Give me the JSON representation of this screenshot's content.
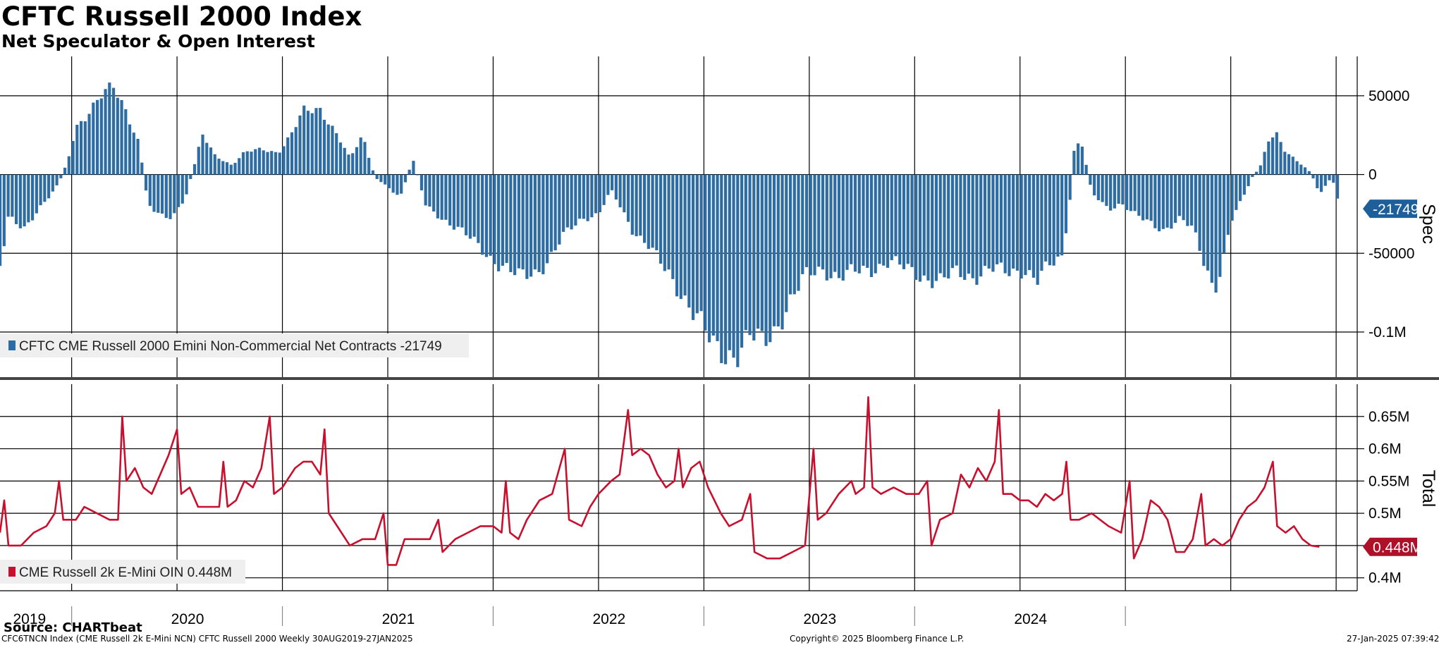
{
  "header": {
    "title": "CFTC Russell 2000 Index",
    "subtitle": "Net Speculator & Open Interest"
  },
  "footer": {
    "source": "Source: CHARTbeat",
    "left": "CFC6TNCN Index (CME Russell 2k E-Mini NCN) CFTC Russell 2000  Weekly 30AUG2019-27JAN2025",
    "center": "Copyright© 2025 Bloomberg Finance L.P.",
    "right": "27-Jan-2025 07:39:42"
  },
  "colors": {
    "spec": "#2e6da4",
    "total": "#c8102e",
    "grid": "#000000"
  },
  "chart_data": [
    {
      "type": "bar",
      "panel": "top",
      "axis_title": "Spec",
      "ylim": [
        -130000,
        75000
      ],
      "yticks": [
        {
          "value": 50000,
          "label": "50000"
        },
        {
          "value": 0,
          "label": "0"
        },
        {
          "value": -50000,
          "label": "-50000"
        },
        {
          "value": -100000,
          "label": "-0.1M"
        }
      ],
      "last_label": "-21749",
      "last_value": -21749,
      "legend": "CFTC CME Russell 2000 Emini Non-Commercial Net Contracts -21749",
      "series_name": "CFTC CME Russell 2000 Emini Non-Commercial Net Contracts",
      "x_start": "2019-08-30",
      "x_end": "2025-01-27",
      "grid": true,
      "anchors": [
        {
          "t": 2019.66,
          "v": -58000
        },
        {
          "t": 2019.7,
          "v": -25000
        },
        {
          "t": 2019.78,
          "v": -35000
        },
        {
          "t": 2019.86,
          "v": -20000
        },
        {
          "t": 2019.94,
          "v": -5000
        },
        {
          "t": 2019.98,
          "v": 8000
        },
        {
          "t": 2020.02,
          "v": 30000
        },
        {
          "t": 2020.08,
          "v": 40000
        },
        {
          "t": 2020.14,
          "v": 50000
        },
        {
          "t": 2020.2,
          "v": 55000
        },
        {
          "t": 2020.26,
          "v": 40000
        },
        {
          "t": 2020.32,
          "v": 20000
        },
        {
          "t": 2020.36,
          "v": -18000
        },
        {
          "t": 2020.42,
          "v": -25000
        },
        {
          "t": 2020.48,
          "v": -28000
        },
        {
          "t": 2020.54,
          "v": -15000
        },
        {
          "t": 2020.58,
          "v": 5000
        },
        {
          "t": 2020.62,
          "v": 25000
        },
        {
          "t": 2020.68,
          "v": 12000
        },
        {
          "t": 2020.76,
          "v": 6000
        },
        {
          "t": 2020.82,
          "v": 14000
        },
        {
          "t": 2020.9,
          "v": 16000
        },
        {
          "t": 2020.98,
          "v": 14000
        },
        {
          "t": 2021.04,
          "v": 25000
        },
        {
          "t": 2021.1,
          "v": 40000
        },
        {
          "t": 2021.18,
          "v": 42000
        },
        {
          "t": 2021.26,
          "v": 25000
        },
        {
          "t": 2021.32,
          "v": 10000
        },
        {
          "t": 2021.38,
          "v": 25000
        },
        {
          "t": 2021.44,
          "v": -2000
        },
        {
          "t": 2021.5,
          "v": -8000
        },
        {
          "t": 2021.56,
          "v": -14000
        },
        {
          "t": 2021.62,
          "v": 10000
        },
        {
          "t": 2021.68,
          "v": -20000
        },
        {
          "t": 2021.76,
          "v": -28000
        },
        {
          "t": 2021.84,
          "v": -35000
        },
        {
          "t": 2021.92,
          "v": -44000
        },
        {
          "t": 2021.98,
          "v": -52000
        },
        {
          "t": 2022.04,
          "v": -58000
        },
        {
          "t": 2022.12,
          "v": -65000
        },
        {
          "t": 2022.2,
          "v": -62000
        },
        {
          "t": 2022.26,
          "v": -55000
        },
        {
          "t": 2022.34,
          "v": -38000
        },
        {
          "t": 2022.42,
          "v": -28000
        },
        {
          "t": 2022.5,
          "v": -25000
        },
        {
          "t": 2022.56,
          "v": -10000
        },
        {
          "t": 2022.6,
          "v": -20000
        },
        {
          "t": 2022.66,
          "v": -35000
        },
        {
          "t": 2022.74,
          "v": -45000
        },
        {
          "t": 2022.8,
          "v": -58000
        },
        {
          "t": 2022.86,
          "v": -70000
        },
        {
          "t": 2022.92,
          "v": -80000
        },
        {
          "t": 2022.98,
          "v": -92000
        },
        {
          "t": 2023.04,
          "v": -110000
        },
        {
          "t": 2023.1,
          "v": -115000
        },
        {
          "t": 2023.16,
          "v": -112000
        },
        {
          "t": 2023.22,
          "v": -102000
        },
        {
          "t": 2023.28,
          "v": -108000
        },
        {
          "t": 2023.34,
          "v": -98000
        },
        {
          "t": 2023.4,
          "v": -82000
        },
        {
          "t": 2023.48,
          "v": -65000
        },
        {
          "t": 2023.56,
          "v": -60000
        },
        {
          "t": 2023.64,
          "v": -65000
        },
        {
          "t": 2023.72,
          "v": -62000
        },
        {
          "t": 2023.8,
          "v": -60000
        },
        {
          "t": 2023.88,
          "v": -55000
        },
        {
          "t": 2023.96,
          "v": -60000
        },
        {
          "t": 2024.04,
          "v": -65000
        },
        {
          "t": 2024.12,
          "v": -68000
        },
        {
          "t": 2024.2,
          "v": -62000
        },
        {
          "t": 2024.28,
          "v": -65000
        },
        {
          "t": 2024.36,
          "v": -60000
        },
        {
          "t": 2024.44,
          "v": -62000
        },
        {
          "t": 2024.52,
          "v": -60000
        },
        {
          "t": 2024.58,
          "v": -68000
        },
        {
          "t": 2024.64,
          "v": -58000
        },
        {
          "t": 2024.7,
          "v": -52000
        },
        {
          "t": 2024.74,
          "v": -12000
        },
        {
          "t": 2024.76,
          "v": 22000
        },
        {
          "t": 2024.8,
          "v": 16000
        },
        {
          "t": 2024.84,
          "v": -12000
        },
        {
          "t": 2024.92,
          "v": -22000
        },
        {
          "t": 2024.98,
          "v": -18000
        },
        {
          "t": 2025.04,
          "v": -25000
        },
        {
          "t": 2025.1,
          "v": -30000
        },
        {
          "t": 2025.18,
          "v": -35000
        },
        {
          "t": 2025.26,
          "v": -28000
        },
        {
          "t": 2025.32,
          "v": -35000
        },
        {
          "t": 2025.38,
          "v": -58000
        },
        {
          "t": 2025.42,
          "v": -72000
        },
        {
          "t": 2025.46,
          "v": -58000
        },
        {
          "t": 2025.5,
          "v": -30000
        },
        {
          "t": 2025.54,
          "v": -20000
        },
        {
          "t": 2025.6,
          "v": -2000
        },
        {
          "t": 2025.64,
          "v": 5000
        },
        {
          "t": 2025.68,
          "v": 22000
        },
        {
          "t": 2025.72,
          "v": 26000
        },
        {
          "t": 2025.76,
          "v": 15000
        },
        {
          "t": 2025.82,
          "v": 8000
        },
        {
          "t": 2025.88,
          "v": 1000
        },
        {
          "t": 2025.92,
          "v": -12000
        },
        {
          "t": 2025.98,
          "v": -2000
        },
        {
          "t": 2026.02,
          "v": -21749
        }
      ]
    },
    {
      "type": "line",
      "panel": "bottom",
      "axis_title": "Total",
      "ylim": [
        0.38,
        0.7
      ],
      "yticks": [
        {
          "value": 0.65,
          "label": "0.65M"
        },
        {
          "value": 0.6,
          "label": "0.6M"
        },
        {
          "value": 0.55,
          "label": "0.55M"
        },
        {
          "value": 0.5,
          "label": "0.5M"
        },
        {
          "value": 0.45,
          "label": ""
        },
        {
          "value": 0.4,
          "label": "0.4M"
        }
      ],
      "last_label": "0.448M",
      "last_value": 0.448,
      "legend": "CME Russell 2k E-Mini OIN 0.448M",
      "series_name": "CME Russell 2k E-Mini OIN",
      "x_start": "2019-08-30",
      "x_end": "2025-01-27",
      "grid": true,
      "points": [
        {
          "t": 2019.66,
          "v": 0.47
        },
        {
          "t": 2019.68,
          "v": 0.52
        },
        {
          "t": 2019.7,
          "v": 0.45
        },
        {
          "t": 2019.76,
          "v": 0.45
        },
        {
          "t": 2019.82,
          "v": 0.47
        },
        {
          "t": 2019.88,
          "v": 0.48
        },
        {
          "t": 2019.92,
          "v": 0.5
        },
        {
          "t": 2019.94,
          "v": 0.55
        },
        {
          "t": 2019.96,
          "v": 0.49
        },
        {
          "t": 2020.02,
          "v": 0.49
        },
        {
          "t": 2020.06,
          "v": 0.51
        },
        {
          "t": 2020.12,
          "v": 0.5
        },
        {
          "t": 2020.18,
          "v": 0.49
        },
        {
          "t": 2020.22,
          "v": 0.49
        },
        {
          "t": 2020.24,
          "v": 0.65
        },
        {
          "t": 2020.26,
          "v": 0.55
        },
        {
          "t": 2020.3,
          "v": 0.57
        },
        {
          "t": 2020.34,
          "v": 0.54
        },
        {
          "t": 2020.38,
          "v": 0.53
        },
        {
          "t": 2020.42,
          "v": 0.56
        },
        {
          "t": 2020.46,
          "v": 0.59
        },
        {
          "t": 2020.5,
          "v": 0.63
        },
        {
          "t": 2020.52,
          "v": 0.53
        },
        {
          "t": 2020.56,
          "v": 0.54
        },
        {
          "t": 2020.6,
          "v": 0.51
        },
        {
          "t": 2020.66,
          "v": 0.51
        },
        {
          "t": 2020.7,
          "v": 0.51
        },
        {
          "t": 2020.72,
          "v": 0.58
        },
        {
          "t": 2020.74,
          "v": 0.51
        },
        {
          "t": 2020.78,
          "v": 0.52
        },
        {
          "t": 2020.82,
          "v": 0.55
        },
        {
          "t": 2020.86,
          "v": 0.54
        },
        {
          "t": 2020.9,
          "v": 0.57
        },
        {
          "t": 2020.94,
          "v": 0.65
        },
        {
          "t": 2020.96,
          "v": 0.53
        },
        {
          "t": 2021.0,
          "v": 0.54
        },
        {
          "t": 2021.04,
          "v": 0.56
        },
        {
          "t": 2021.06,
          "v": 0.57
        },
        {
          "t": 2021.1,
          "v": 0.58
        },
        {
          "t": 2021.14,
          "v": 0.58
        },
        {
          "t": 2021.18,
          "v": 0.56
        },
        {
          "t": 2021.2,
          "v": 0.63
        },
        {
          "t": 2021.22,
          "v": 0.5
        },
        {
          "t": 2021.26,
          "v": 0.48
        },
        {
          "t": 2021.32,
          "v": 0.45
        },
        {
          "t": 2021.38,
          "v": 0.46
        },
        {
          "t": 2021.44,
          "v": 0.46
        },
        {
          "t": 2021.48,
          "v": 0.5
        },
        {
          "t": 2021.5,
          "v": 0.42
        },
        {
          "t": 2021.54,
          "v": 0.42
        },
        {
          "t": 2021.58,
          "v": 0.46
        },
        {
          "t": 2021.64,
          "v": 0.46
        },
        {
          "t": 2021.7,
          "v": 0.46
        },
        {
          "t": 2021.74,
          "v": 0.49
        },
        {
          "t": 2021.76,
          "v": 0.44
        },
        {
          "t": 2021.82,
          "v": 0.46
        },
        {
          "t": 2021.88,
          "v": 0.47
        },
        {
          "t": 2021.94,
          "v": 0.48
        },
        {
          "t": 2022.0,
          "v": 0.48
        },
        {
          "t": 2022.04,
          "v": 0.47
        },
        {
          "t": 2022.06,
          "v": 0.55
        },
        {
          "t": 2022.08,
          "v": 0.47
        },
        {
          "t": 2022.12,
          "v": 0.46
        },
        {
          "t": 2022.16,
          "v": 0.49
        },
        {
          "t": 2022.22,
          "v": 0.52
        },
        {
          "t": 2022.28,
          "v": 0.53
        },
        {
          "t": 2022.34,
          "v": 0.6
        },
        {
          "t": 2022.36,
          "v": 0.49
        },
        {
          "t": 2022.42,
          "v": 0.48
        },
        {
          "t": 2022.46,
          "v": 0.51
        },
        {
          "t": 2022.5,
          "v": 0.53
        },
        {
          "t": 2022.56,
          "v": 0.55
        },
        {
          "t": 2022.6,
          "v": 0.56
        },
        {
          "t": 2022.64,
          "v": 0.66
        },
        {
          "t": 2022.66,
          "v": 0.59
        },
        {
          "t": 2022.7,
          "v": 0.6
        },
        {
          "t": 2022.74,
          "v": 0.59
        },
        {
          "t": 2022.78,
          "v": 0.56
        },
        {
          "t": 2022.82,
          "v": 0.54
        },
        {
          "t": 2022.86,
          "v": 0.55
        },
        {
          "t": 2022.88,
          "v": 0.6
        },
        {
          "t": 2022.9,
          "v": 0.54
        },
        {
          "t": 2022.94,
          "v": 0.57
        },
        {
          "t": 2022.98,
          "v": 0.58
        },
        {
          "t": 2023.02,
          "v": 0.54
        },
        {
          "t": 2023.08,
          "v": 0.5
        },
        {
          "t": 2023.12,
          "v": 0.48
        },
        {
          "t": 2023.18,
          "v": 0.49
        },
        {
          "t": 2023.22,
          "v": 0.53
        },
        {
          "t": 2023.24,
          "v": 0.44
        },
        {
          "t": 2023.3,
          "v": 0.43
        },
        {
          "t": 2023.36,
          "v": 0.43
        },
        {
          "t": 2023.42,
          "v": 0.44
        },
        {
          "t": 2023.48,
          "v": 0.45
        },
        {
          "t": 2023.52,
          "v": 0.6
        },
        {
          "t": 2023.54,
          "v": 0.49
        },
        {
          "t": 2023.58,
          "v": 0.5
        },
        {
          "t": 2023.64,
          "v": 0.53
        },
        {
          "t": 2023.7,
          "v": 0.55
        },
        {
          "t": 2023.72,
          "v": 0.53
        },
        {
          "t": 2023.76,
          "v": 0.54
        },
        {
          "t": 2023.78,
          "v": 0.68
        },
        {
          "t": 2023.8,
          "v": 0.54
        },
        {
          "t": 2023.84,
          "v": 0.53
        },
        {
          "t": 2023.9,
          "v": 0.54
        },
        {
          "t": 2023.96,
          "v": 0.53
        },
        {
          "t": 2024.02,
          "v": 0.53
        },
        {
          "t": 2024.06,
          "v": 0.55
        },
        {
          "t": 2024.08,
          "v": 0.45
        },
        {
          "t": 2024.12,
          "v": 0.49
        },
        {
          "t": 2024.18,
          "v": 0.5
        },
        {
          "t": 2024.22,
          "v": 0.56
        },
        {
          "t": 2024.26,
          "v": 0.54
        },
        {
          "t": 2024.3,
          "v": 0.57
        },
        {
          "t": 2024.34,
          "v": 0.55
        },
        {
          "t": 2024.38,
          "v": 0.58
        },
        {
          "t": 2024.4,
          "v": 0.66
        },
        {
          "t": 2024.42,
          "v": 0.53
        },
        {
          "t": 2024.46,
          "v": 0.53
        },
        {
          "t": 2024.5,
          "v": 0.52
        },
        {
          "t": 2024.54,
          "v": 0.52
        },
        {
          "t": 2024.58,
          "v": 0.51
        },
        {
          "t": 2024.62,
          "v": 0.53
        },
        {
          "t": 2024.66,
          "v": 0.52
        },
        {
          "t": 2024.7,
          "v": 0.53
        },
        {
          "t": 2024.72,
          "v": 0.58
        },
        {
          "t": 2024.74,
          "v": 0.49
        },
        {
          "t": 2024.78,
          "v": 0.49
        },
        {
          "t": 2024.84,
          "v": 0.5
        },
        {
          "t": 2024.88,
          "v": 0.49
        },
        {
          "t": 2024.92,
          "v": 0.48
        },
        {
          "t": 2024.98,
          "v": 0.47
        },
        {
          "t": 2025.02,
          "v": 0.55
        },
        {
          "t": 2025.04,
          "v": 0.43
        },
        {
          "t": 2025.08,
          "v": 0.46
        },
        {
          "t": 2025.12,
          "v": 0.52
        },
        {
          "t": 2025.16,
          "v": 0.51
        },
        {
          "t": 2025.2,
          "v": 0.49
        },
        {
          "t": 2025.24,
          "v": 0.44
        },
        {
          "t": 2025.28,
          "v": 0.44
        },
        {
          "t": 2025.32,
          "v": 0.46
        },
        {
          "t": 2025.36,
          "v": 0.53
        },
        {
          "t": 2025.38,
          "v": 0.45
        },
        {
          "t": 2025.42,
          "v": 0.46
        },
        {
          "t": 2025.46,
          "v": 0.45
        },
        {
          "t": 2025.5,
          "v": 0.46
        },
        {
          "t": 2025.54,
          "v": 0.49
        },
        {
          "t": 2025.58,
          "v": 0.51
        },
        {
          "t": 2025.62,
          "v": 0.52
        },
        {
          "t": 2025.66,
          "v": 0.54
        },
        {
          "t": 2025.7,
          "v": 0.58
        },
        {
          "t": 2025.72,
          "v": 0.48
        },
        {
          "t": 2025.76,
          "v": 0.47
        },
        {
          "t": 2025.8,
          "v": 0.48
        },
        {
          "t": 2025.84,
          "v": 0.46
        },
        {
          "t": 2025.88,
          "v": 0.45
        },
        {
          "t": 2025.92,
          "v": 0.448
        }
      ]
    }
  ],
  "x_axis": {
    "year_labels": [
      "2019",
      "2020",
      "2021",
      "2022",
      "2023",
      "2024"
    ],
    "year_label_positions_t": [
      2019.8,
      2020.55,
      2021.55,
      2022.55,
      2023.55,
      2024.55
    ],
    "year_boundaries_t": [
      2020.0,
      2021.0,
      2022.0,
      2023.0,
      2024.0,
      2025.0
    ],
    "t_min": 2019.66,
    "t_max": 2026.1
  }
}
